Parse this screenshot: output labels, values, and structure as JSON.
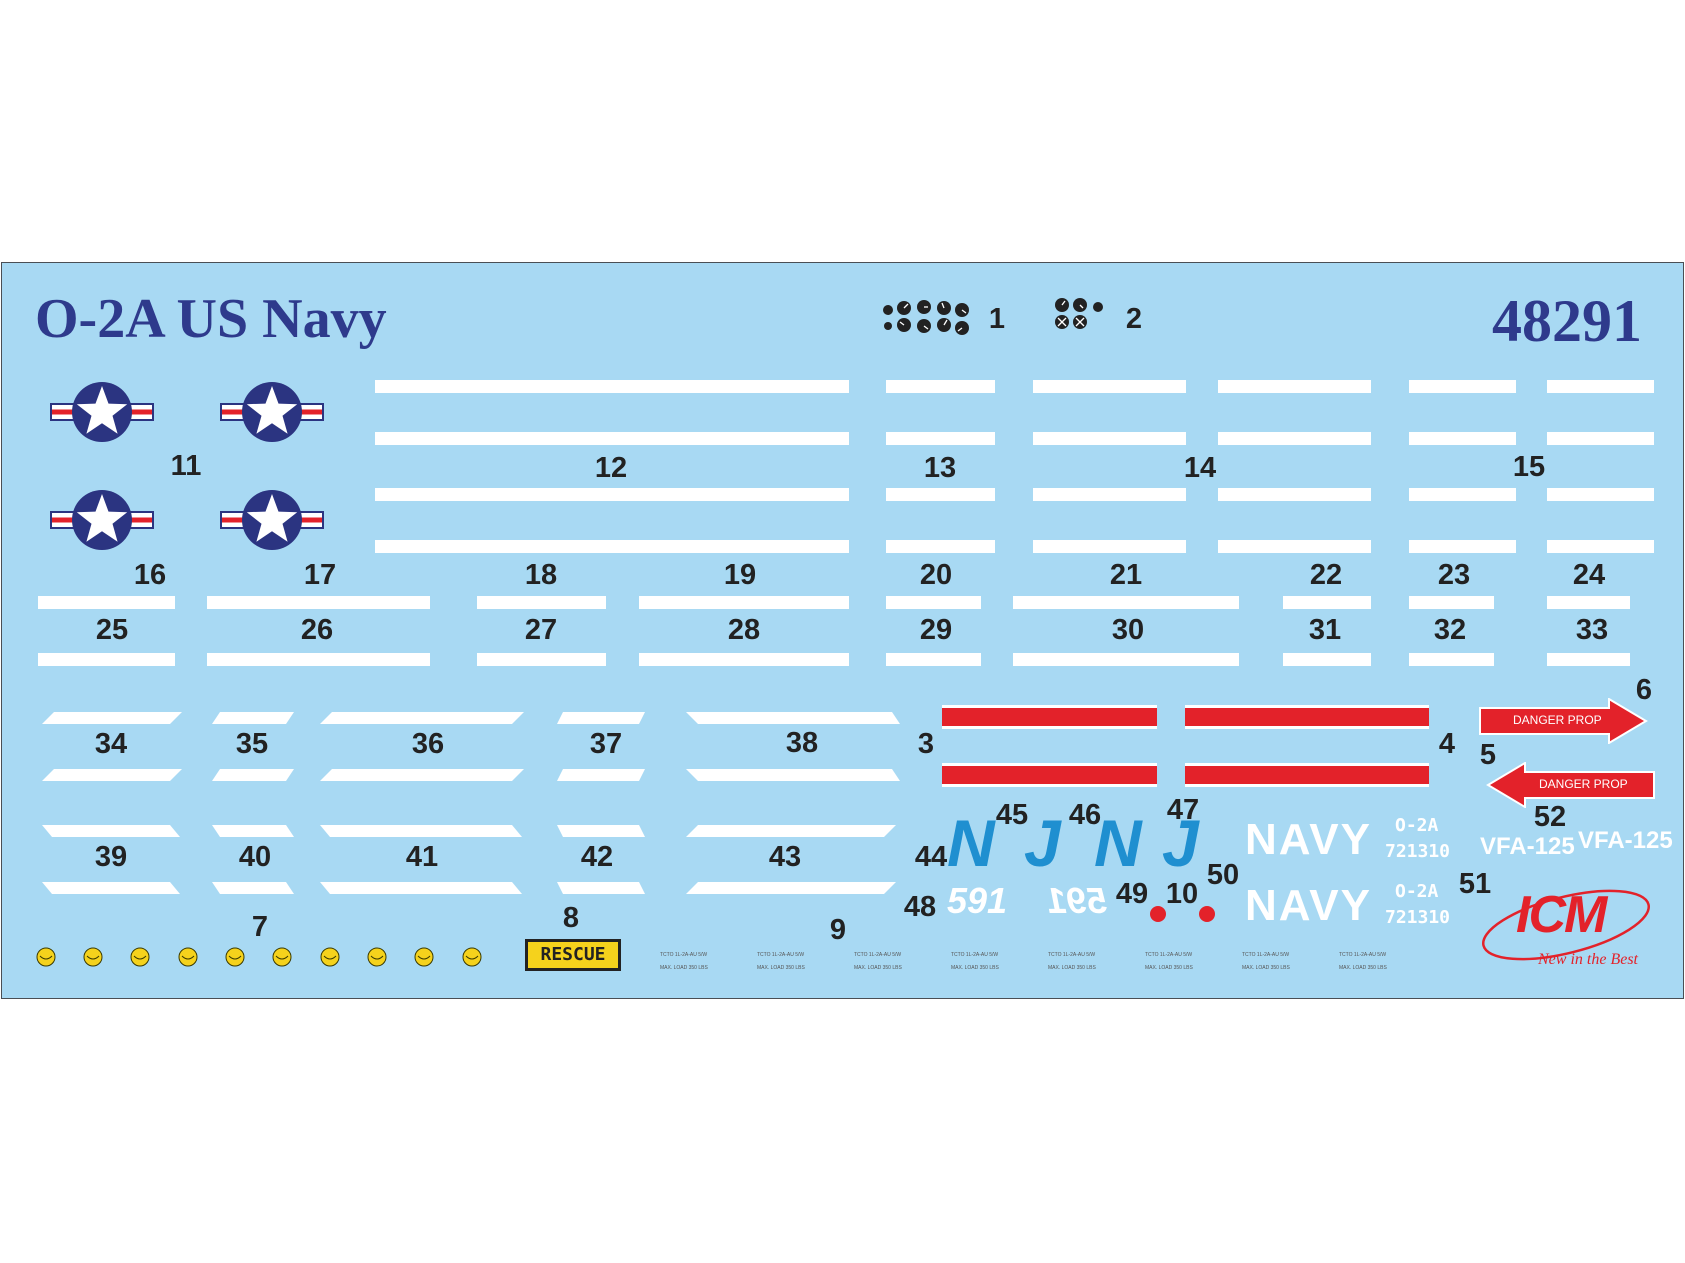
{
  "sheet": {
    "title": "O-2A US Navy",
    "product_code": "48291"
  },
  "numbers": {
    "n1": "1",
    "n2": "2",
    "n3": "3",
    "n4": "4",
    "n5": "5",
    "n6": "6",
    "n7": "7",
    "n8": "8",
    "n9": "9",
    "n10": "10",
    "n11": "11",
    "n12": "12",
    "n13": "13",
    "n14": "14",
    "n15": "15",
    "n16": "16",
    "n17": "17",
    "n18": "18",
    "n19": "19",
    "n20": "20",
    "n21": "21",
    "n22": "22",
    "n23": "23",
    "n24": "24",
    "n25": "25",
    "n26": "26",
    "n27": "27",
    "n28": "28",
    "n29": "29",
    "n30": "30",
    "n31": "31",
    "n32": "32",
    "n33": "33",
    "n34": "34",
    "n35": "35",
    "n36": "36",
    "n37": "37",
    "n38": "38",
    "n39": "39",
    "n40": "40",
    "n41": "41",
    "n42": "42",
    "n43": "43",
    "n44": "44",
    "n45": "45",
    "n46": "46",
    "n47": "47",
    "n48": "48",
    "n49": "49",
    "n50": "50",
    "n51": "51",
    "n52": "52"
  },
  "decals": {
    "danger_prop_1": "DANGER PROP",
    "danger_prop_2": "DANGER PROP",
    "rescue": "RESCUE",
    "navy_1": "NAVY",
    "navy_2": "NAVY",
    "tail_1": "591",
    "tail_2": "591",
    "model_1": "O-2A",
    "serial_1": "721310",
    "model_2": "O-2A",
    "serial_2": "721310",
    "squadron_1": "VFA-125",
    "squadron_2": "VFA-125",
    "letter_n": "N",
    "letter_j": "J",
    "stencil_line_1": "TCTO  1L-2A-AU 5/W",
    "stencil_line_2": "MAX. LOAD  350 LBS"
  },
  "logo": {
    "brand": "ICM",
    "slogan": "New in the Best"
  },
  "colors": {
    "sheet_background": "#a8d9f3",
    "title_blue": "#2e3a8c",
    "insignia_blue": "#2b3481",
    "red": "#e3222a",
    "letter_blue": "#1f8fd0",
    "rescue_yellow": "#f5d21c",
    "white": "#ffffff"
  }
}
